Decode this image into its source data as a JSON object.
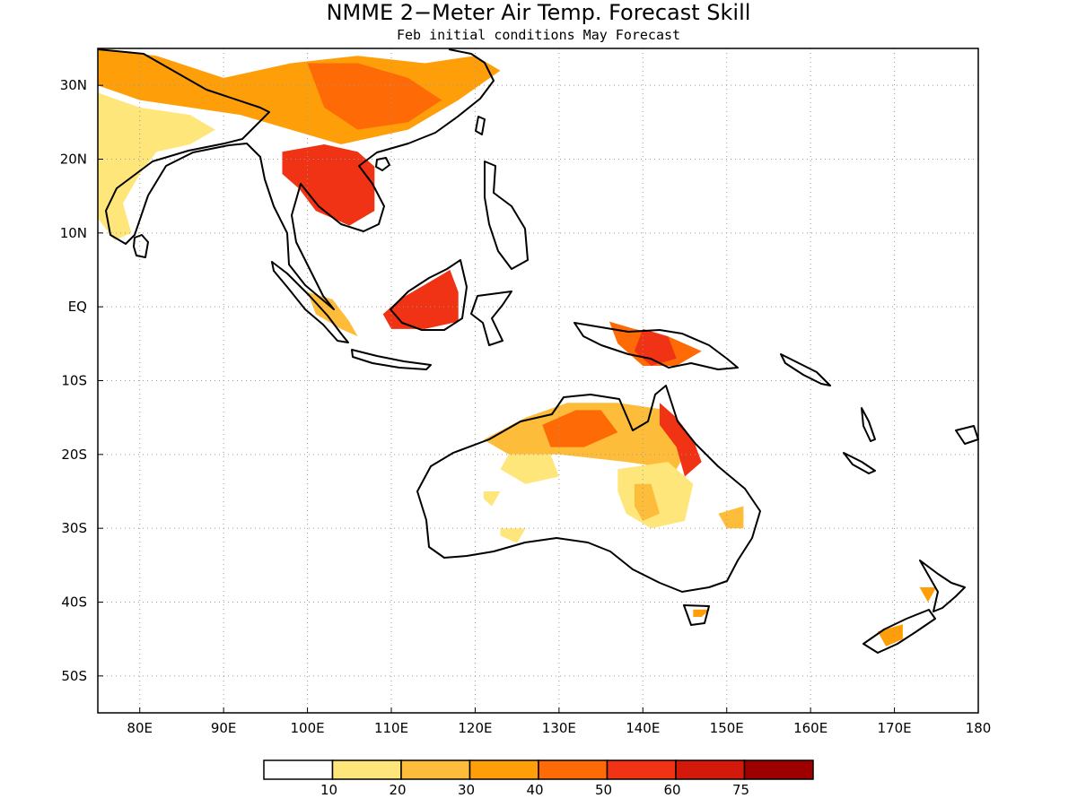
{
  "title": "NMME 2−Meter Air Temp. Forecast Skill",
  "subtitle": "Feb initial conditions  May Forecast",
  "map": {
    "lon_range": [
      75,
      180
    ],
    "lat_range": [
      -55,
      35
    ],
    "lon_ticks": [
      {
        "lon": 80,
        "label": "80E"
      },
      {
        "lon": 90,
        "label": "90E"
      },
      {
        "lon": 100,
        "label": "100E"
      },
      {
        "lon": 110,
        "label": "110E"
      },
      {
        "lon": 120,
        "label": "120E"
      },
      {
        "lon": 130,
        "label": "130E"
      },
      {
        "lon": 140,
        "label": "140E"
      },
      {
        "lon": 150,
        "label": "150E"
      },
      {
        "lon": 160,
        "label": "160E"
      },
      {
        "lon": 170,
        "label": "170E"
      },
      {
        "lon": 180,
        "label": "180"
      }
    ],
    "lat_ticks": [
      {
        "lat": 30,
        "label": "30N"
      },
      {
        "lat": 20,
        "label": "20N"
      },
      {
        "lat": 10,
        "label": "10N"
      },
      {
        "lat": 0,
        "label": "EQ"
      },
      {
        "lat": -10,
        "label": "10S"
      },
      {
        "lat": -20,
        "label": "20S"
      },
      {
        "lat": -30,
        "label": "30S"
      },
      {
        "lat": -40,
        "label": "40S"
      },
      {
        "lat": -50,
        "label": "50S"
      }
    ],
    "gridlines": "dotted"
  },
  "colorbar": {
    "colors": [
      "#ffffff",
      "#fee67a",
      "#fdbd3a",
      "#fe9f0a",
      "#fe6a05",
      "#ef3314",
      "#d31909",
      "#9e0000"
    ],
    "labels": [
      "10",
      "20",
      "30",
      "40",
      "50",
      "60",
      "75"
    ]
  },
  "skill_regions": [
    {
      "level": 3,
      "poly": [
        [
          75,
          35
        ],
        [
          82,
          34
        ],
        [
          90,
          31
        ],
        [
          98,
          33
        ],
        [
          106,
          34
        ],
        [
          114,
          33
        ],
        [
          120,
          34
        ],
        [
          123,
          32
        ],
        [
          118,
          28
        ],
        [
          112,
          24
        ],
        [
          104,
          22
        ],
        [
          98,
          24
        ],
        [
          92,
          26
        ],
        [
          86,
          27
        ],
        [
          80,
          28
        ],
        [
          75,
          30
        ]
      ]
    },
    {
      "level": 1,
      "poly": [
        [
          75,
          29
        ],
        [
          80,
          27
        ],
        [
          86,
          26
        ],
        [
          89,
          24
        ],
        [
          86,
          22
        ],
        [
          82,
          21
        ],
        [
          80,
          18
        ],
        [
          78,
          14
        ],
        [
          79,
          10
        ],
        [
          77,
          9
        ],
        [
          75,
          12
        ]
      ]
    },
    {
      "level": 4,
      "poly": [
        [
          100,
          33
        ],
        [
          106,
          33
        ],
        [
          112,
          31
        ],
        [
          116,
          28
        ],
        [
          112,
          25
        ],
        [
          106,
          24
        ],
        [
          102,
          27
        ]
      ]
    },
    {
      "level": 5,
      "poly": [
        [
          97,
          21
        ],
        [
          102,
          22
        ],
        [
          106,
          21
        ],
        [
          108,
          19
        ],
        [
          108,
          13
        ],
        [
          105,
          11
        ],
        [
          101,
          13
        ],
        [
          99,
          16
        ],
        [
          97,
          18
        ]
      ]
    },
    {
      "level": 5,
      "poly": [
        [
          109,
          -1
        ],
        [
          111,
          1
        ],
        [
          114,
          3
        ],
        [
          117,
          5
        ],
        [
          118,
          2
        ],
        [
          118,
          -2
        ],
        [
          114,
          -3
        ],
        [
          110,
          -3
        ]
      ]
    },
    {
      "level": 2,
      "poly": [
        [
          100,
          2
        ],
        [
          103,
          1
        ],
        [
          105,
          -2
        ],
        [
          106,
          -4
        ],
        [
          104,
          -3
        ],
        [
          101,
          -1
        ]
      ]
    },
    {
      "level": 4,
      "poly": [
        [
          136,
          -2
        ],
        [
          139,
          -3
        ],
        [
          143,
          -4
        ],
        [
          147,
          -6
        ],
        [
          144,
          -8
        ],
        [
          140,
          -8
        ],
        [
          137,
          -5
        ]
      ]
    },
    {
      "level": 5,
      "poly": [
        [
          140,
          -3
        ],
        [
          143,
          -4
        ],
        [
          144,
          -7
        ],
        [
          141,
          -8
        ],
        [
          139,
          -6
        ]
      ]
    },
    {
      "level": 2,
      "poly": [
        [
          121,
          -18
        ],
        [
          126,
          -15
        ],
        [
          131,
          -13
        ],
        [
          137,
          -13
        ],
        [
          143,
          -14
        ],
        [
          146,
          -18
        ],
        [
          144,
          -22
        ],
        [
          138,
          -21
        ],
        [
          130,
          -20
        ],
        [
          124,
          -20
        ]
      ]
    },
    {
      "level": 4,
      "poly": [
        [
          128,
          -16
        ],
        [
          132,
          -14
        ],
        [
          135,
          -14
        ],
        [
          137,
          -17
        ],
        [
          133,
          -19
        ],
        [
          129,
          -19
        ]
      ]
    },
    {
      "level": 5,
      "poly": [
        [
          142,
          -13
        ],
        [
          144,
          -15
        ],
        [
          146,
          -18
        ],
        [
          147,
          -21
        ],
        [
          145,
          -23
        ],
        [
          144,
          -19
        ],
        [
          142,
          -16
        ]
      ]
    },
    {
      "level": 1,
      "poly": [
        [
          137,
          -22
        ],
        [
          143,
          -21
        ],
        [
          146,
          -24
        ],
        [
          145,
          -29
        ],
        [
          141,
          -30
        ],
        [
          138,
          -28
        ],
        [
          137,
          -25
        ]
      ]
    },
    {
      "level": 2,
      "poly": [
        [
          139,
          -24
        ],
        [
          141,
          -24
        ],
        [
          142,
          -28
        ],
        [
          140,
          -29
        ],
        [
          139,
          -27
        ]
      ]
    },
    {
      "level": 1,
      "poly": [
        [
          124,
          -20
        ],
        [
          129,
          -20
        ],
        [
          130,
          -23
        ],
        [
          126,
          -24
        ],
        [
          123,
          -22
        ]
      ]
    },
    {
      "level": 1,
      "poly": [
        [
          121,
          -25
        ],
        [
          123,
          -25
        ],
        [
          122,
          -27
        ],
        [
          121,
          -26
        ]
      ]
    },
    {
      "level": 1,
      "poly": [
        [
          123,
          -30
        ],
        [
          126,
          -30
        ],
        [
          125,
          -32
        ],
        [
          123,
          -31
        ]
      ]
    },
    {
      "level": 2,
      "poly": [
        [
          149,
          -28
        ],
        [
          152,
          -27
        ],
        [
          152,
          -30
        ],
        [
          150,
          -30
        ]
      ]
    },
    {
      "level": 3,
      "poly": [
        [
          146,
          -41
        ],
        [
          148,
          -41
        ],
        [
          147,
          -42
        ],
        [
          146,
          -42
        ]
      ]
    },
    {
      "level": 3,
      "poly": [
        [
          168,
          -44
        ],
        [
          171,
          -43
        ],
        [
          171,
          -45
        ],
        [
          169,
          -46
        ]
      ]
    },
    {
      "level": 3,
      "poly": [
        [
          173,
          -38
        ],
        [
          175,
          -38
        ],
        [
          174,
          -40
        ]
      ]
    }
  ]
}
